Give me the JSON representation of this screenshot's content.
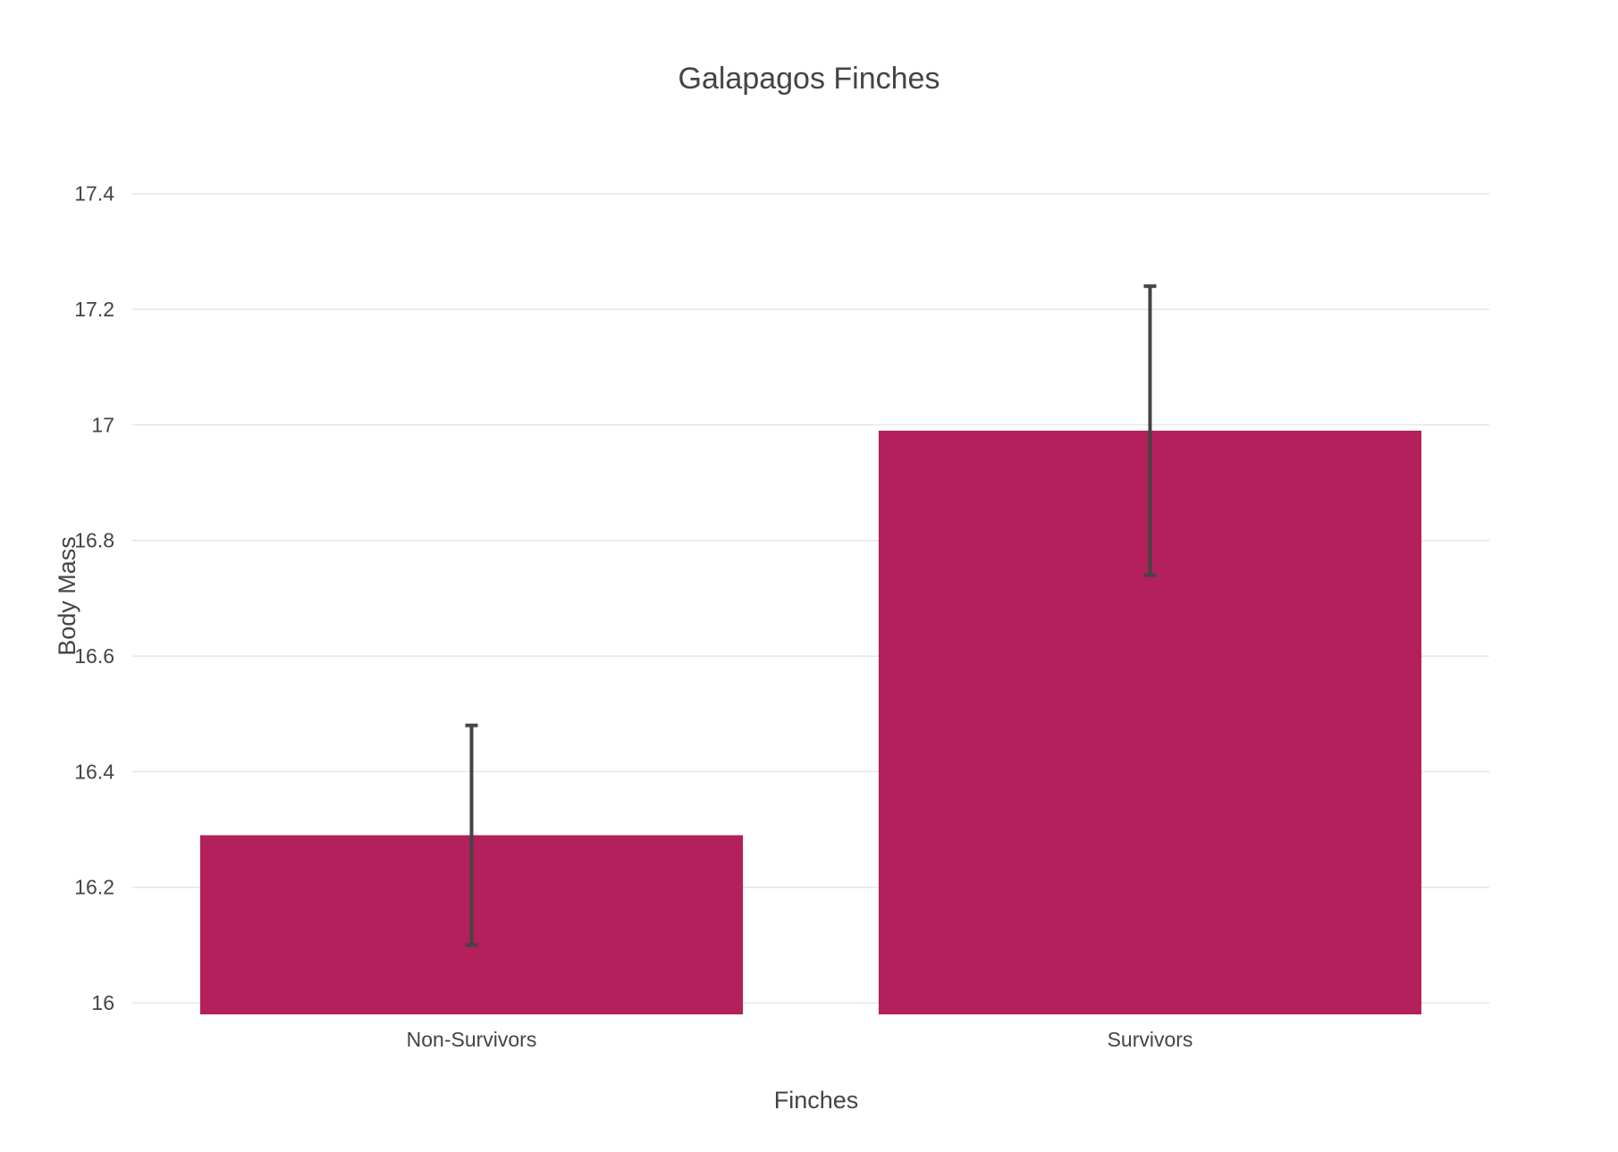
{
  "chart_data": {
    "type": "bar",
    "title": "Galapagos Finches",
    "xlabel": "Finches",
    "ylabel": "Body Mass",
    "categories": [
      "Non-Survivors",
      "Survivors"
    ],
    "values": [
      16.29,
      16.99
    ],
    "error_low": [
      16.1,
      16.74
    ],
    "error_high": [
      16.48,
      17.24
    ],
    "ylim": [
      15.98,
      17.48
    ],
    "yticks": [
      16,
      16.2,
      16.4,
      16.6,
      16.8,
      17,
      17.2,
      17.4
    ],
    "ytick_labels": [
      "16",
      "16.2",
      "16.4",
      "16.6",
      "16.8",
      "17",
      "17.2",
      "17.4"
    ],
    "grid": true,
    "legend": "none",
    "colors": {
      "bar": "#b3205c",
      "error_bar": "#444444",
      "grid": "#e6e6e6",
      "text": "#444444"
    }
  }
}
